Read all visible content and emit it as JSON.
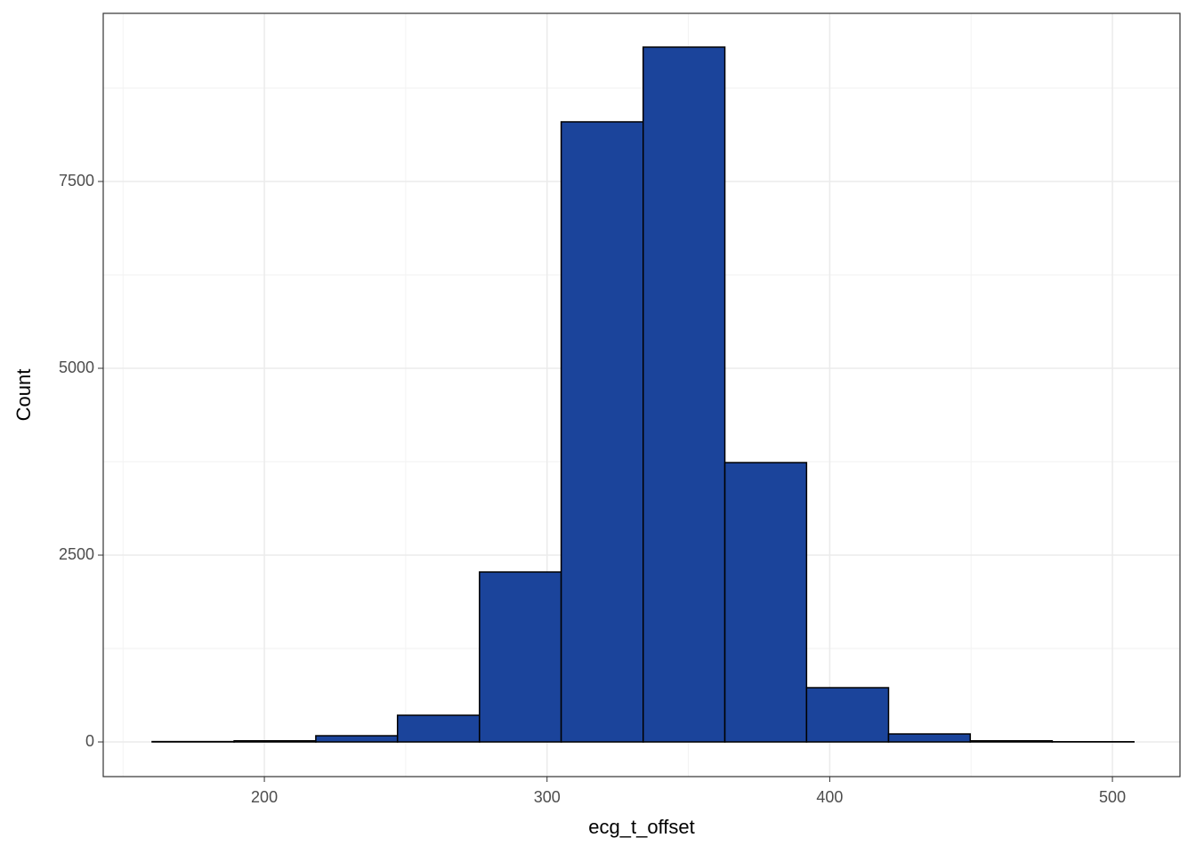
{
  "chart_data": {
    "type": "histogram",
    "x_label": "ecg_t_offset",
    "y_label": "Count",
    "bins": [
      160.3,
      189.3,
      218.2,
      247.1,
      276.1,
      305.0,
      334.0,
      362.9,
      391.8,
      420.8,
      449.7,
      478.7,
      507.6
    ],
    "values": [
      5,
      15,
      83,
      357,
      2274,
      8298,
      9298,
      3738,
      726,
      107,
      15,
      3
    ],
    "color": "#1b449b",
    "xlim": [
      143.0,
      523.9
    ],
    "ylim": [
      -464,
      9750
    ],
    "xticks": [
      200,
      300,
      400,
      500
    ],
    "yticks": [
      0,
      2500,
      5000,
      7500
    ],
    "xminor": [
      150,
      250,
      350,
      450
    ],
    "yminor": [
      1250,
      3750,
      6250,
      8750
    ],
    "grid": true
  }
}
